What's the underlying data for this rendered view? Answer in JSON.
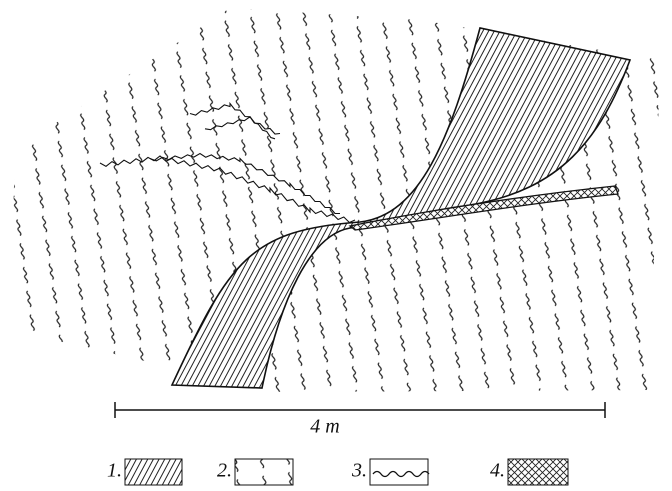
{
  "scale_bar": {
    "label": "4 m"
  },
  "legend": [
    {
      "label": "1."
    },
    {
      "label": "2."
    },
    {
      "label": "3."
    },
    {
      "label": "4."
    }
  ]
}
